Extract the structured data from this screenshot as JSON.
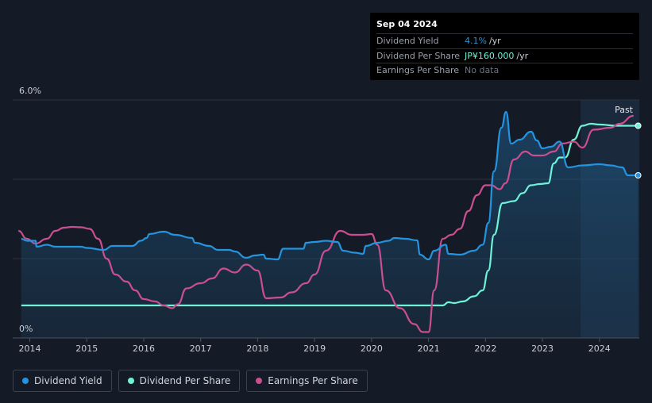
{
  "tooltip": {
    "date": "Sep 04 2024",
    "rows": [
      {
        "label": "Dividend Yield",
        "value": "4.1%",
        "unit": "/yr",
        "color": "#2394df"
      },
      {
        "label": "Dividend Per Share",
        "value": "JP¥160.000",
        "unit": "/yr",
        "color": "#6ef2d8"
      },
      {
        "label": "Earnings Per Share",
        "value": "No data",
        "unit": "",
        "color": "#6b7280"
      }
    ]
  },
  "legend": [
    {
      "label": "Dividend Yield",
      "color": "#2394df"
    },
    {
      "label": "Dividend Per Share",
      "color": "#6ef2d8"
    },
    {
      "label": "Earnings Per Share",
      "color": "#c94f8f"
    }
  ],
  "chart_data": {
    "type": "line",
    "y_tick_labels": [
      "6.0%",
      "0%"
    ],
    "ylim": [
      0,
      6.0
    ],
    "xlim": [
      2013.7,
      2024.7
    ],
    "x_ticks": [
      2014,
      2015,
      2016,
      2017,
      2018,
      2019,
      2020,
      2021,
      2022,
      2023,
      2024
    ],
    "past_label": "Past",
    "past_region_start": 2023.67,
    "grid": true,
    "series": [
      {
        "name": "Dividend Yield",
        "color": "#2394df",
        "unit": "%",
        "points": [
          [
            2013.85,
            2.5
          ],
          [
            2013.95,
            2.45
          ],
          [
            2014.1,
            2.45
          ],
          [
            2014.12,
            2.3
          ],
          [
            2014.3,
            2.35
          ],
          [
            2014.45,
            2.3
          ],
          [
            2014.9,
            2.3
          ],
          [
            2015.0,
            2.27
          ],
          [
            2015.3,
            2.22
          ],
          [
            2015.45,
            2.32
          ],
          [
            2015.8,
            2.32
          ],
          [
            2015.95,
            2.45
          ],
          [
            2016.05,
            2.52
          ],
          [
            2016.1,
            2.62
          ],
          [
            2016.35,
            2.68
          ],
          [
            2016.55,
            2.6
          ],
          [
            2016.85,
            2.52
          ],
          [
            2016.9,
            2.4
          ],
          [
            2017.15,
            2.32
          ],
          [
            2017.3,
            2.22
          ],
          [
            2017.5,
            2.22
          ],
          [
            2017.6,
            2.18
          ],
          [
            2017.8,
            2.02
          ],
          [
            2017.95,
            2.08
          ],
          [
            2018.1,
            2.1
          ],
          [
            2018.15,
            2.0
          ],
          [
            2018.35,
            1.98
          ],
          [
            2018.45,
            2.25
          ],
          [
            2018.8,
            2.25
          ],
          [
            2018.85,
            2.4
          ],
          [
            2019.0,
            2.42
          ],
          [
            2019.2,
            2.45
          ],
          [
            2019.4,
            2.42
          ],
          [
            2019.5,
            2.2
          ],
          [
            2019.7,
            2.15
          ],
          [
            2019.85,
            2.12
          ],
          [
            2019.9,
            2.32
          ],
          [
            2020.1,
            2.4
          ],
          [
            2020.3,
            2.45
          ],
          [
            2020.4,
            2.52
          ],
          [
            2020.6,
            2.5
          ],
          [
            2020.8,
            2.46
          ],
          [
            2020.85,
            2.1
          ],
          [
            2021.0,
            1.98
          ],
          [
            2021.1,
            2.2
          ],
          [
            2021.3,
            2.35
          ],
          [
            2021.35,
            2.12
          ],
          [
            2021.55,
            2.1
          ],
          [
            2021.8,
            2.2
          ],
          [
            2021.95,
            2.35
          ],
          [
            2022.05,
            2.9
          ],
          [
            2022.15,
            4.2
          ],
          [
            2022.28,
            5.3
          ],
          [
            2022.36,
            5.7
          ],
          [
            2022.45,
            4.9
          ],
          [
            2022.6,
            5.0
          ],
          [
            2022.8,
            5.2
          ],
          [
            2022.9,
            4.98
          ],
          [
            2023.0,
            4.78
          ],
          [
            2023.15,
            4.82
          ],
          [
            2023.3,
            4.95
          ],
          [
            2023.45,
            4.3
          ],
          [
            2023.7,
            4.35
          ],
          [
            2024.0,
            4.38
          ],
          [
            2024.2,
            4.35
          ],
          [
            2024.4,
            4.3
          ],
          [
            2024.5,
            4.1
          ],
          [
            2024.68,
            4.1
          ]
        ]
      },
      {
        "name": "Dividend Per Share",
        "color": "#6ef2d8",
        "unit": "JP¥",
        "points": [
          [
            2013.85,
            0.82
          ],
          [
            2021.25,
            0.82
          ],
          [
            2021.35,
            0.9
          ],
          [
            2021.45,
            0.88
          ],
          [
            2021.6,
            0.92
          ],
          [
            2021.8,
            1.05
          ],
          [
            2021.95,
            1.2
          ],
          [
            2022.05,
            1.7
          ],
          [
            2022.15,
            2.6
          ],
          [
            2022.3,
            3.4
          ],
          [
            2022.5,
            3.45
          ],
          [
            2022.65,
            3.65
          ],
          [
            2022.8,
            3.85
          ],
          [
            2022.95,
            3.88
          ],
          [
            2023.1,
            3.9
          ],
          [
            2023.2,
            4.4
          ],
          [
            2023.3,
            4.55
          ],
          [
            2023.4,
            4.55
          ],
          [
            2023.55,
            5.0
          ],
          [
            2023.7,
            5.35
          ],
          [
            2023.85,
            5.4
          ],
          [
            2024.0,
            5.38
          ],
          [
            2024.3,
            5.35
          ],
          [
            2024.68,
            5.35
          ]
        ]
      },
      {
        "name": "Earnings Per Share",
        "color": "#c94f8f",
        "unit": "JP¥",
        "points": [
          [
            2013.8,
            2.7
          ],
          [
            2013.95,
            2.5
          ],
          [
            2014.1,
            2.38
          ],
          [
            2014.3,
            2.5
          ],
          [
            2014.45,
            2.7
          ],
          [
            2014.6,
            2.78
          ],
          [
            2014.75,
            2.8
          ],
          [
            2014.9,
            2.79
          ],
          [
            2015.05,
            2.75
          ],
          [
            2015.2,
            2.5
          ],
          [
            2015.35,
            2.0
          ],
          [
            2015.5,
            1.6
          ],
          [
            2015.7,
            1.42
          ],
          [
            2015.85,
            1.2
          ],
          [
            2016.0,
            0.98
          ],
          [
            2016.2,
            0.92
          ],
          [
            2016.35,
            0.82
          ],
          [
            2016.5,
            0.75
          ],
          [
            2016.6,
            0.85
          ],
          [
            2016.75,
            1.25
          ],
          [
            2017.0,
            1.38
          ],
          [
            2017.2,
            1.5
          ],
          [
            2017.4,
            1.75
          ],
          [
            2017.6,
            1.65
          ],
          [
            2017.8,
            1.85
          ],
          [
            2018.0,
            1.7
          ],
          [
            2018.15,
            1.0
          ],
          [
            2018.4,
            1.02
          ],
          [
            2018.6,
            1.15
          ],
          [
            2018.85,
            1.38
          ],
          [
            2019.0,
            1.6
          ],
          [
            2019.2,
            2.2
          ],
          [
            2019.45,
            2.7
          ],
          [
            2019.65,
            2.6
          ],
          [
            2019.85,
            2.6
          ],
          [
            2020.0,
            2.62
          ],
          [
            2020.1,
            2.35
          ],
          [
            2020.25,
            1.2
          ],
          [
            2020.5,
            0.75
          ],
          [
            2020.75,
            0.35
          ],
          [
            2020.9,
            0.15
          ],
          [
            2021.0,
            0.15
          ],
          [
            2021.1,
            1.2
          ],
          [
            2021.25,
            2.5
          ],
          [
            2021.4,
            2.6
          ],
          [
            2021.55,
            2.75
          ],
          [
            2021.7,
            3.2
          ],
          [
            2021.85,
            3.6
          ],
          [
            2022.0,
            3.85
          ],
          [
            2022.1,
            3.85
          ],
          [
            2022.25,
            3.75
          ],
          [
            2022.35,
            3.9
          ],
          [
            2022.5,
            4.5
          ],
          [
            2022.7,
            4.7
          ],
          [
            2022.85,
            4.6
          ],
          [
            2023.0,
            4.6
          ],
          [
            2023.2,
            4.7
          ],
          [
            2023.35,
            4.9
          ],
          [
            2023.55,
            4.95
          ],
          [
            2023.7,
            4.8
          ],
          [
            2023.9,
            5.25
          ],
          [
            2024.2,
            5.3
          ],
          [
            2024.35,
            5.4
          ],
          [
            2024.6,
            5.6
          ]
        ]
      }
    ]
  }
}
